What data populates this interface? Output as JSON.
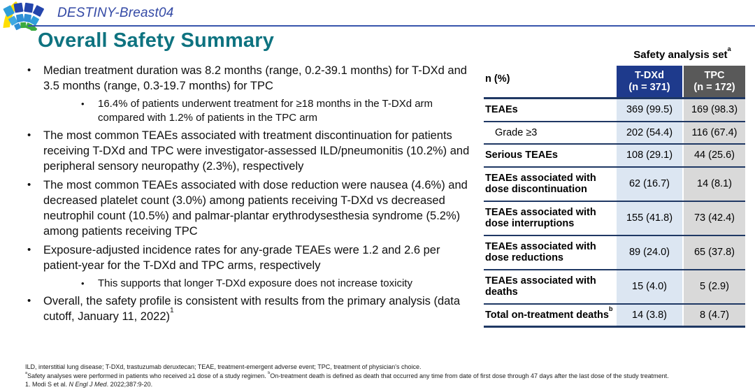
{
  "header": {
    "study_name": "DESTINY-Breast04"
  },
  "title": "Overall Safety Summary",
  "bullets": [
    {
      "text": "Median treatment duration was 8.2 months (range, 0.2-39.1 months) for T-DXd and 3.5 months (range, 0.3-19.7 months) for TPC",
      "sup": "",
      "sub": [
        "16.4% of patients underwent treatment for ≥18 months in the T-DXd arm compared with 1.2% of patients in the TPC arm"
      ]
    },
    {
      "text": "The most common TEAEs associated with treatment discontinuation for patients receiving T-DXd and TPC were investigator-assessed ILD/pneumonitis (10.2%) and peripheral sensory neuropathy (2.3%), respectively",
      "sup": "",
      "sub": []
    },
    {
      "text": "The most common TEAEs associated with dose reduction were nausea (4.6%) and decreased platelet count (3.0%) among patients receiving T-DXd vs decreased neutrophil count (10.5%) and palmar-plantar erythrodysesthesia syndrome (5.2%) among patients receiving TPC",
      "sup": "",
      "sub": []
    },
    {
      "text": "Exposure-adjusted incidence rates for any-grade TEAEs were 1.2 and 2.6 per patient-year for the T-DXd and TPC arms, respectively",
      "sup": "",
      "sub": [
        "This supports that longer T-DXd exposure does not increase toxicity"
      ]
    },
    {
      "text": "Overall, the safety profile is consistent with results from the primary analysis (data cutoff, January 11, 2022)",
      "sup": "1",
      "sub": []
    }
  ],
  "table": {
    "caption": "Safety analysis set",
    "caption_sup": "a",
    "row_header_label": "n (%)",
    "columns": [
      {
        "name": "T-DXd",
        "n_label": "(n = 371)"
      },
      {
        "name": "TPC",
        "n_label": "(n = 172)"
      }
    ],
    "rows": [
      {
        "label": "TEAEs",
        "sup": "",
        "bold": true,
        "indent": false,
        "tdxd": "369 (99.5)",
        "tpc": "169 (98.3)"
      },
      {
        "label": "Grade ≥3",
        "sup": "",
        "bold": false,
        "indent": true,
        "tdxd": "202 (54.4)",
        "tpc": "116 (67.4)"
      },
      {
        "label": "Serious TEAEs",
        "sup": "",
        "bold": true,
        "indent": false,
        "tdxd": "108 (29.1)",
        "tpc": "44 (25.6)"
      },
      {
        "label": "TEAEs associated with dose discontinuation",
        "sup": "",
        "bold": true,
        "indent": false,
        "tdxd": "62 (16.7)",
        "tpc": "14 (8.1)"
      },
      {
        "label": "TEAEs associated with dose interruptions",
        "sup": "",
        "bold": true,
        "indent": false,
        "tdxd": "155 (41.8)",
        "tpc": "73 (42.4)"
      },
      {
        "label": "TEAEs associated with dose reductions",
        "sup": "",
        "bold": true,
        "indent": false,
        "tdxd": "89 (24.0)",
        "tpc": "65 (37.8)"
      },
      {
        "label": "TEAEs associated with deaths",
        "sup": "",
        "bold": true,
        "indent": false,
        "tdxd": "15 (4.0)",
        "tpc": "5 (2.9)"
      },
      {
        "label": "Total on-treatment deaths",
        "sup": "b",
        "bold": true,
        "indent": false,
        "tdxd": "14 (3.8)",
        "tpc": "8 (4.7)"
      }
    ]
  },
  "footnotes": {
    "abbreviations": "ILD, interstitial lung disease; T-DXd, trastuzumab deruxtecan; TEAE, treatment-emergent adverse event; TPC, treatment of physician's choice.",
    "notes": [
      {
        "sup": "a",
        "text": "Safety analyses were performed in patients who received ≥1 dose of a study regimen. "
      },
      {
        "sup": "b",
        "text": "On-treatment death is defined as death that occurred any time from date of first dose through 47 days after the last dose of the study treatment."
      }
    ],
    "reference_prefix": "1. Modi S et al. ",
    "reference_journal": "N Engl J Med",
    "reference_suffix": ". 2022;387:9-20."
  },
  "colors": {
    "brand_blue": "#3349A5",
    "title_teal": "#0E7380",
    "table_header_blue": "#1E3A8C",
    "table_header_gray": "#595959",
    "tdxd_column_fill": "#DCE6F2",
    "tpc_column_fill": "#D9D9D9",
    "table_line_navy": "#1F3864",
    "logo_yellow": "#FFDE00",
    "logo_navy": "#2445AC",
    "logo_blue": "#2E8FD5",
    "logo_light_blue": "#3FA9E1",
    "logo_green": "#3BAA3F"
  }
}
